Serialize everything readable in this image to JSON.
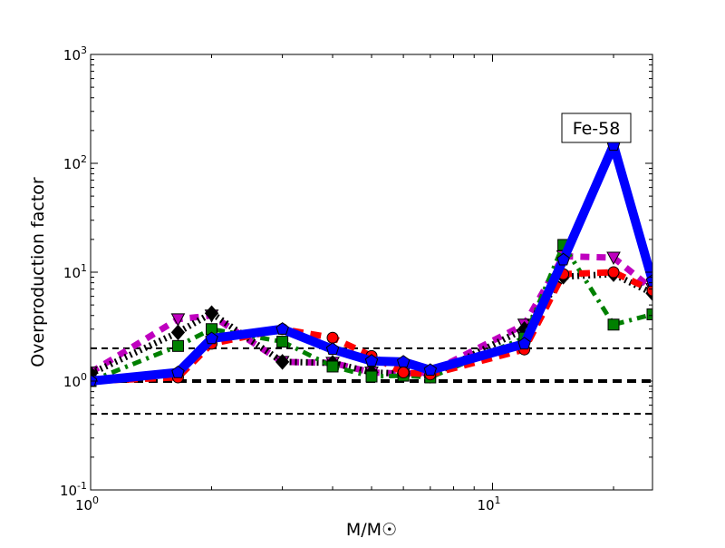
{
  "chart_data": {
    "type": "line",
    "title": "",
    "xlabel": "M/M☉",
    "ylabel": "Overproduction factor",
    "xscale": "log",
    "yscale": "log",
    "xlim": [
      1,
      25
    ],
    "ylim": [
      0.1,
      1000
    ],
    "x_ticks": [
      {
        "value": 1,
        "base": "10",
        "exp": "0"
      },
      {
        "value": 10,
        "base": "10",
        "exp": "1"
      }
    ],
    "y_ticks": [
      {
        "value": 0.1,
        "base": "10",
        "exp": "-1"
      },
      {
        "value": 1,
        "base": "10",
        "exp": "0"
      },
      {
        "value": 10,
        "base": "10",
        "exp": "1"
      },
      {
        "value": 100,
        "base": "10",
        "exp": "2"
      },
      {
        "value": 1000,
        "base": "10",
        "exp": "3"
      }
    ],
    "annotation": "Fe-58",
    "reference_lines": [
      {
        "value": 2,
        "style": "dashed"
      },
      {
        "value": 1,
        "style": "thick-dashed"
      },
      {
        "value": 0.5,
        "style": "dashed"
      }
    ],
    "x": [
      1,
      1.65,
      2,
      3,
      4,
      5,
      6,
      7,
      12,
      15,
      20,
      25
    ],
    "series": [
      {
        "name": "series-magenta",
        "color": "#bf00bf",
        "dash": "10,8",
        "width": 7,
        "marker": "triangle-down",
        "values": [
          1.2,
          3.7,
          4.0,
          1.5,
          1.47,
          1.2,
          1.17,
          1.2,
          3.3,
          14,
          13.6,
          7
        ]
      },
      {
        "name": "series-black",
        "color": "#000000",
        "dash": "2,4",
        "width": 7,
        "marker": "diamond",
        "values": [
          1.17,
          2.8,
          4.2,
          1.5,
          1.47,
          1.2,
          1.17,
          1.12,
          3.0,
          9.1,
          9.6,
          6.4
        ]
      },
      {
        "name": "series-green",
        "color": "#008000",
        "dash": "10,6,3,6",
        "width": 5,
        "marker": "square",
        "values": [
          1.0,
          2.1,
          3.0,
          2.3,
          1.36,
          1.1,
          1.12,
          1.08,
          2.5,
          17.8,
          3.3,
          4.1
        ]
      },
      {
        "name": "series-red",
        "color": "#ff0000",
        "dash": "12,8",
        "width": 7,
        "marker": "circle",
        "values": [
          1.0,
          1.08,
          2.2,
          3.0,
          2.5,
          1.7,
          1.2,
          1.15,
          1.95,
          9.6,
          10,
          6.8
        ]
      },
      {
        "name": "series-blue",
        "color": "#0000ff",
        "dash": "",
        "width": 10,
        "marker": "pentagon",
        "values": [
          1.0,
          1.2,
          2.46,
          3.0,
          1.96,
          1.53,
          1.5,
          1.26,
          2.2,
          13,
          147,
          8.3
        ]
      }
    ]
  }
}
